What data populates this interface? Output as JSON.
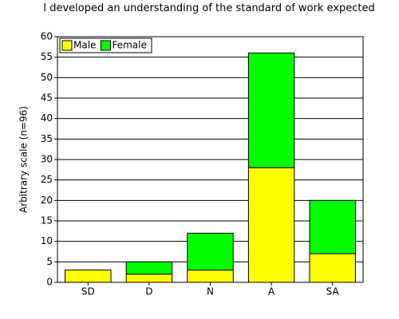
{
  "chart_data": {
    "type": "stacked-bar",
    "title": "I developed an understanding of the standard of work expected",
    "y_label": "Arbitrary scale (n=96)",
    "categories": [
      "SD",
      "D",
      "N",
      "A",
      "SA"
    ],
    "series": [
      {
        "name": "Male",
        "color": "#ffff00",
        "values": [
          3,
          2,
          3,
          28,
          7
        ]
      },
      {
        "name": "Female",
        "color": "#00ff00",
        "values": [
          0,
          3,
          9,
          28,
          13
        ]
      }
    ],
    "ylim": [
      0,
      60
    ],
    "yticks": [
      0,
      5,
      10,
      15,
      20,
      25,
      30,
      35,
      40,
      45,
      50,
      55,
      60
    ],
    "grid": true,
    "legend": "upper-left"
  }
}
